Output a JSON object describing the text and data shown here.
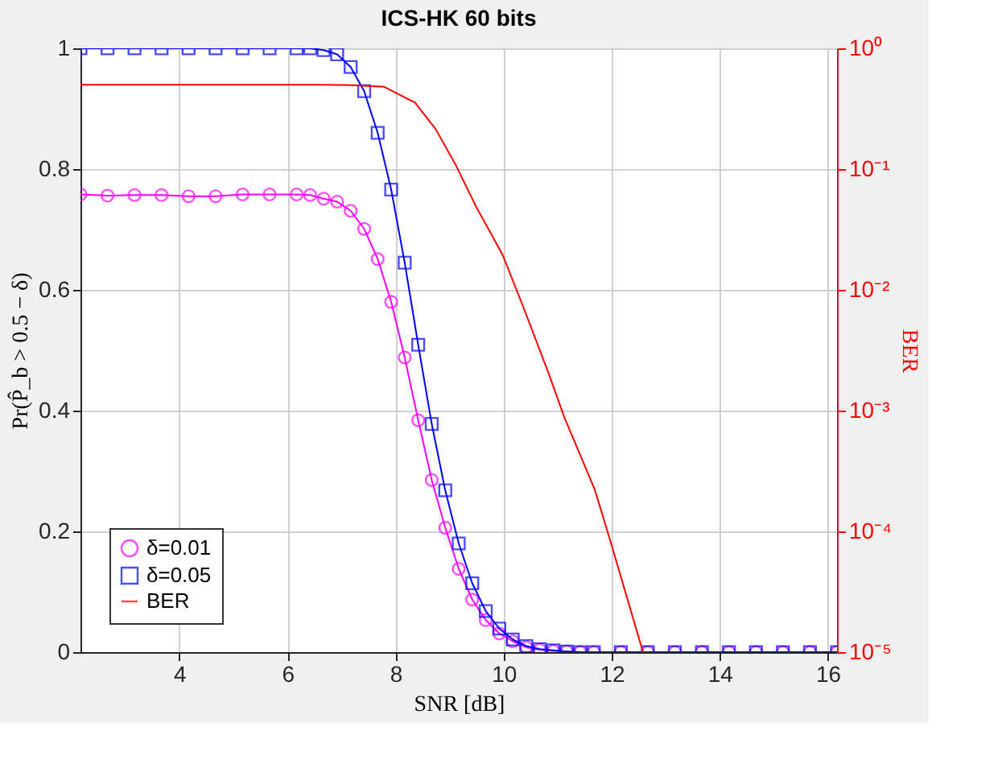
{
  "chart_data": {
    "type": "line",
    "title": "ICS-HK 60 bits",
    "xlabel": "SNR [dB]",
    "ylabel": "Pr(P̂_b > 0.5 − δ)",
    "y2label": "BER",
    "x": [
      2.17,
      2.67,
      3.17,
      3.67,
      4.17,
      4.67,
      5.17,
      5.67,
      6.17,
      6.42,
      6.67,
      6.92,
      7.17,
      7.42,
      7.67,
      7.92,
      8.17,
      8.42,
      8.67,
      8.92,
      9.17,
      9.42,
      9.67,
      9.92,
      10.17,
      10.42,
      10.67,
      10.92,
      11.17,
      11.42,
      11.67,
      12.17,
      12.67,
      13.17,
      13.67,
      14.17,
      14.67,
      15.17,
      15.67,
      16.17
    ],
    "series": [
      {
        "name": "δ=0.01",
        "color": "#ff00ff",
        "marker": "circle",
        "values": [
          0.758,
          0.756,
          0.757,
          0.757,
          0.755,
          0.755,
          0.758,
          0.758,
          0.758,
          0.757,
          0.751,
          0.746,
          0.731,
          0.701,
          0.651,
          0.58,
          0.488,
          0.384,
          0.285,
          0.206,
          0.138,
          0.087,
          0.053,
          0.031,
          0.018,
          0.008,
          0.004,
          0.002,
          0.001,
          0,
          0,
          0,
          0,
          0,
          0,
          0,
          0,
          0,
          0,
          0
        ]
      },
      {
        "name": "δ=0.05",
        "color": "#0000ff",
        "marker": "square",
        "values": [
          1,
          1,
          1,
          1,
          1,
          1,
          1,
          1,
          1,
          1,
          0.997,
          0.99,
          0.969,
          0.929,
          0.86,
          0.766,
          0.645,
          0.509,
          0.378,
          0.268,
          0.18,
          0.114,
          0.068,
          0.039,
          0.021,
          0.01,
          0.005,
          0.003,
          0.001,
          0,
          0,
          0,
          0,
          0,
          0,
          0,
          0,
          0,
          0,
          0
        ]
      },
      {
        "name": "BER",
        "color": "#ff0000",
        "marker": "none",
        "axis": "y2",
        "x": [
          2.17,
          6.67,
          7.17,
          7.79,
          8.36,
          8.74,
          9.12,
          9.5,
          9.98,
          10.36,
          10.84,
          11.12,
          11.69,
          11.98,
          12.58
        ],
        "values": [
          0.5,
          0.5,
          0.495,
          0.48,
          0.355,
          0.215,
          0.107,
          0.048,
          0.0196,
          0.0073,
          0.002,
          0.00089,
          0.00022,
          8.2e-05,
          1e-05
        ]
      }
    ],
    "xlim": [
      2.17,
      16.17
    ],
    "xticks": [
      4,
      6,
      8,
      10,
      12,
      14,
      16
    ],
    "ylim": [
      0,
      1
    ],
    "yticks": [
      0,
      0.2,
      0.4,
      0.6,
      0.8,
      1
    ],
    "y2lim": [
      1e-05,
      1
    ],
    "log": "y2",
    "y2ticks": [
      {
        "value": 1e-05,
        "label": "10⁻⁵"
      },
      {
        "value": 0.0001,
        "label": "10⁻⁴"
      },
      {
        "value": 0.001,
        "label": "10⁻³"
      },
      {
        "value": 0.01,
        "label": "10⁻²"
      },
      {
        "value": 0.1,
        "label": "10⁻¹"
      },
      {
        "value": 1,
        "label": "10⁰"
      }
    ],
    "grid": true,
    "legend": "bottom left",
    "line_style": "solid"
  }
}
